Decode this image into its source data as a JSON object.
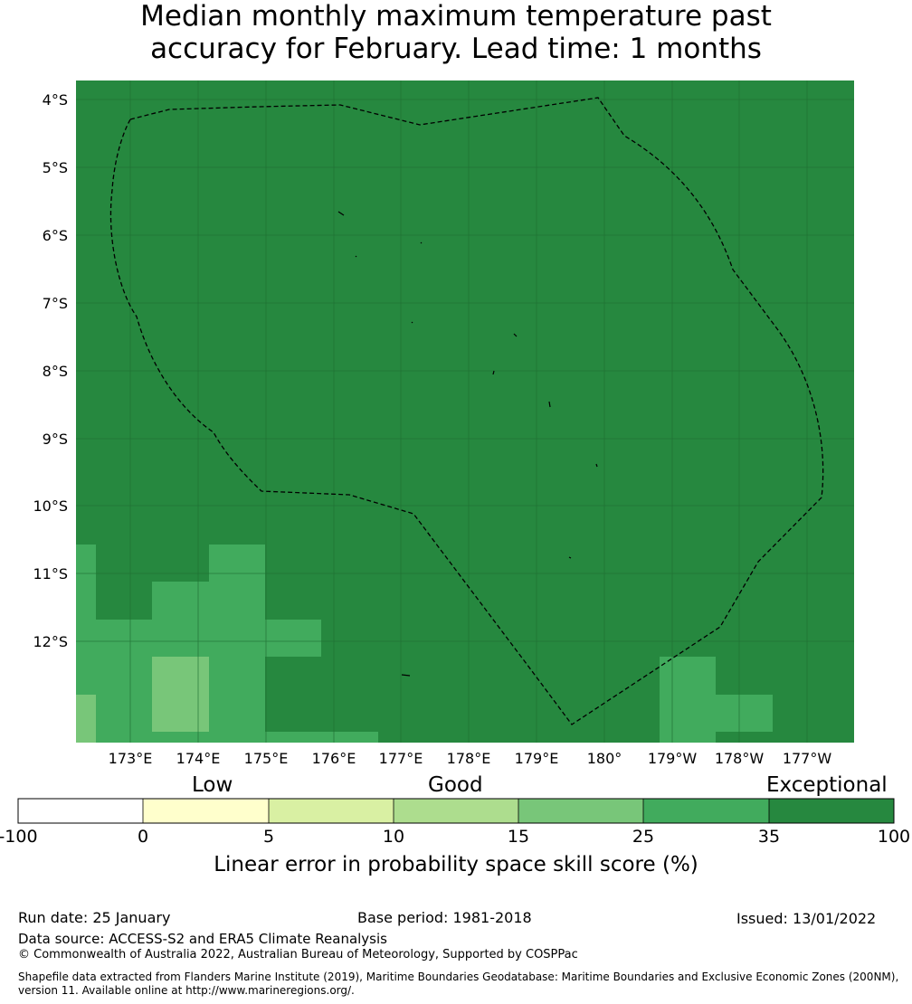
{
  "title": {
    "line1": "Median monthly maximum temperature past",
    "line2": "accuracy for February. Lead time: 1 months"
  },
  "map": {
    "lat_labels": [
      "4°S",
      "5°S",
      "6°S",
      "7°S",
      "8°S",
      "9°S",
      "10°S",
      "11°S",
      "12°S"
    ],
    "lon_labels": [
      "173°E",
      "174°E",
      "175°E",
      "176°E",
      "177°E",
      "178°E",
      "179°E",
      "180°",
      "179°W",
      "178°W",
      "177°W"
    ],
    "colors": {
      "exceptional": "#26883f",
      "band_25_35": "#41ab5d",
      "band_15_25": "#78c679",
      "band_10_15": "#addd8e",
      "band_5_10": "#d9f0a3",
      "band_0_5": "#ffffcc",
      "below_0": "#ffffff"
    }
  },
  "colorbar": {
    "categories": [
      "Low",
      "Good",
      "Exceptional"
    ],
    "ticks": [
      "-100",
      "0",
      "5",
      "10",
      "15",
      "25",
      "35",
      "100"
    ],
    "colors": [
      "#ffffff",
      "#ffffcc",
      "#d9f0a3",
      "#addd8e",
      "#78c679",
      "#41ab5d",
      "#26883f"
    ],
    "label": "Linear error in probability space skill score (%)"
  },
  "footer": {
    "run_date": "Run date: 25 January",
    "base_period": "Base period: 1981-2018",
    "issued": "Issued: 13/01/2022",
    "data_source": "Data source: ACCESS-S2 and ERA5 Climate Reanalysis",
    "copyright": "© Commonwealth of Australia 2022, Australian Bureau of Meteorology, Supported by COSPPac",
    "shapefile_line1": "Shapefile data extracted from Flanders Marine Institute (2019), Maritime Boundaries Geodatabase: Maritime Boundaries and Exclusive Economic Zones (200NM),",
    "shapefile_line2": "version 11. Available online at http://www.marineregions.org/."
  }
}
